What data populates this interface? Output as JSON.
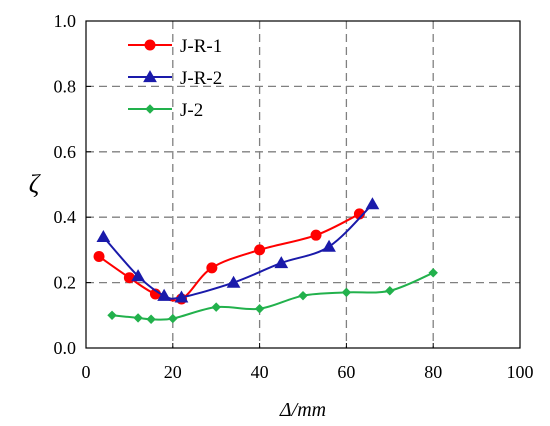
{
  "chart_data": {
    "type": "line",
    "xlabel": "Δ/mm",
    "ylabel": "ζ",
    "xlim": [
      0,
      100
    ],
    "ylim": [
      0,
      1.0
    ],
    "xticks": [
      0,
      20,
      40,
      60,
      80,
      100
    ],
    "yticks": [
      0.0,
      0.2,
      0.4,
      0.6,
      0.8,
      1.0
    ],
    "xtick_labels": [
      "0",
      "20",
      "40",
      "60",
      "80",
      "100"
    ],
    "ytick_labels": [
      "0.0",
      "0.2",
      "0.4",
      "0.6",
      "0.8",
      "1.0"
    ],
    "grid": "dashed, major ticks",
    "legend_position": "top-left",
    "series": [
      {
        "name": "J-R-1",
        "color": "#ff0000",
        "marker": "circle",
        "x": [
          3,
          10,
          16,
          22,
          29,
          40,
          53,
          63
        ],
        "y": [
          0.28,
          0.215,
          0.165,
          0.15,
          0.245,
          0.3,
          0.345,
          0.41
        ]
      },
      {
        "name": "J-R-2",
        "color": "#1a1aaa",
        "marker": "triangle",
        "x": [
          4,
          12,
          18,
          22,
          34,
          45,
          56,
          66
        ],
        "y": [
          0.34,
          0.22,
          0.16,
          0.155,
          0.2,
          0.26,
          0.31,
          0.44
        ]
      },
      {
        "name": "J-2",
        "color": "#22b14c",
        "marker": "diamond",
        "x": [
          6,
          12,
          15,
          20,
          30,
          40,
          50,
          60,
          70,
          80
        ],
        "y": [
          0.1,
          0.092,
          0.088,
          0.09,
          0.125,
          0.12,
          0.16,
          0.17,
          0.175,
          0.23
        ]
      }
    ]
  }
}
